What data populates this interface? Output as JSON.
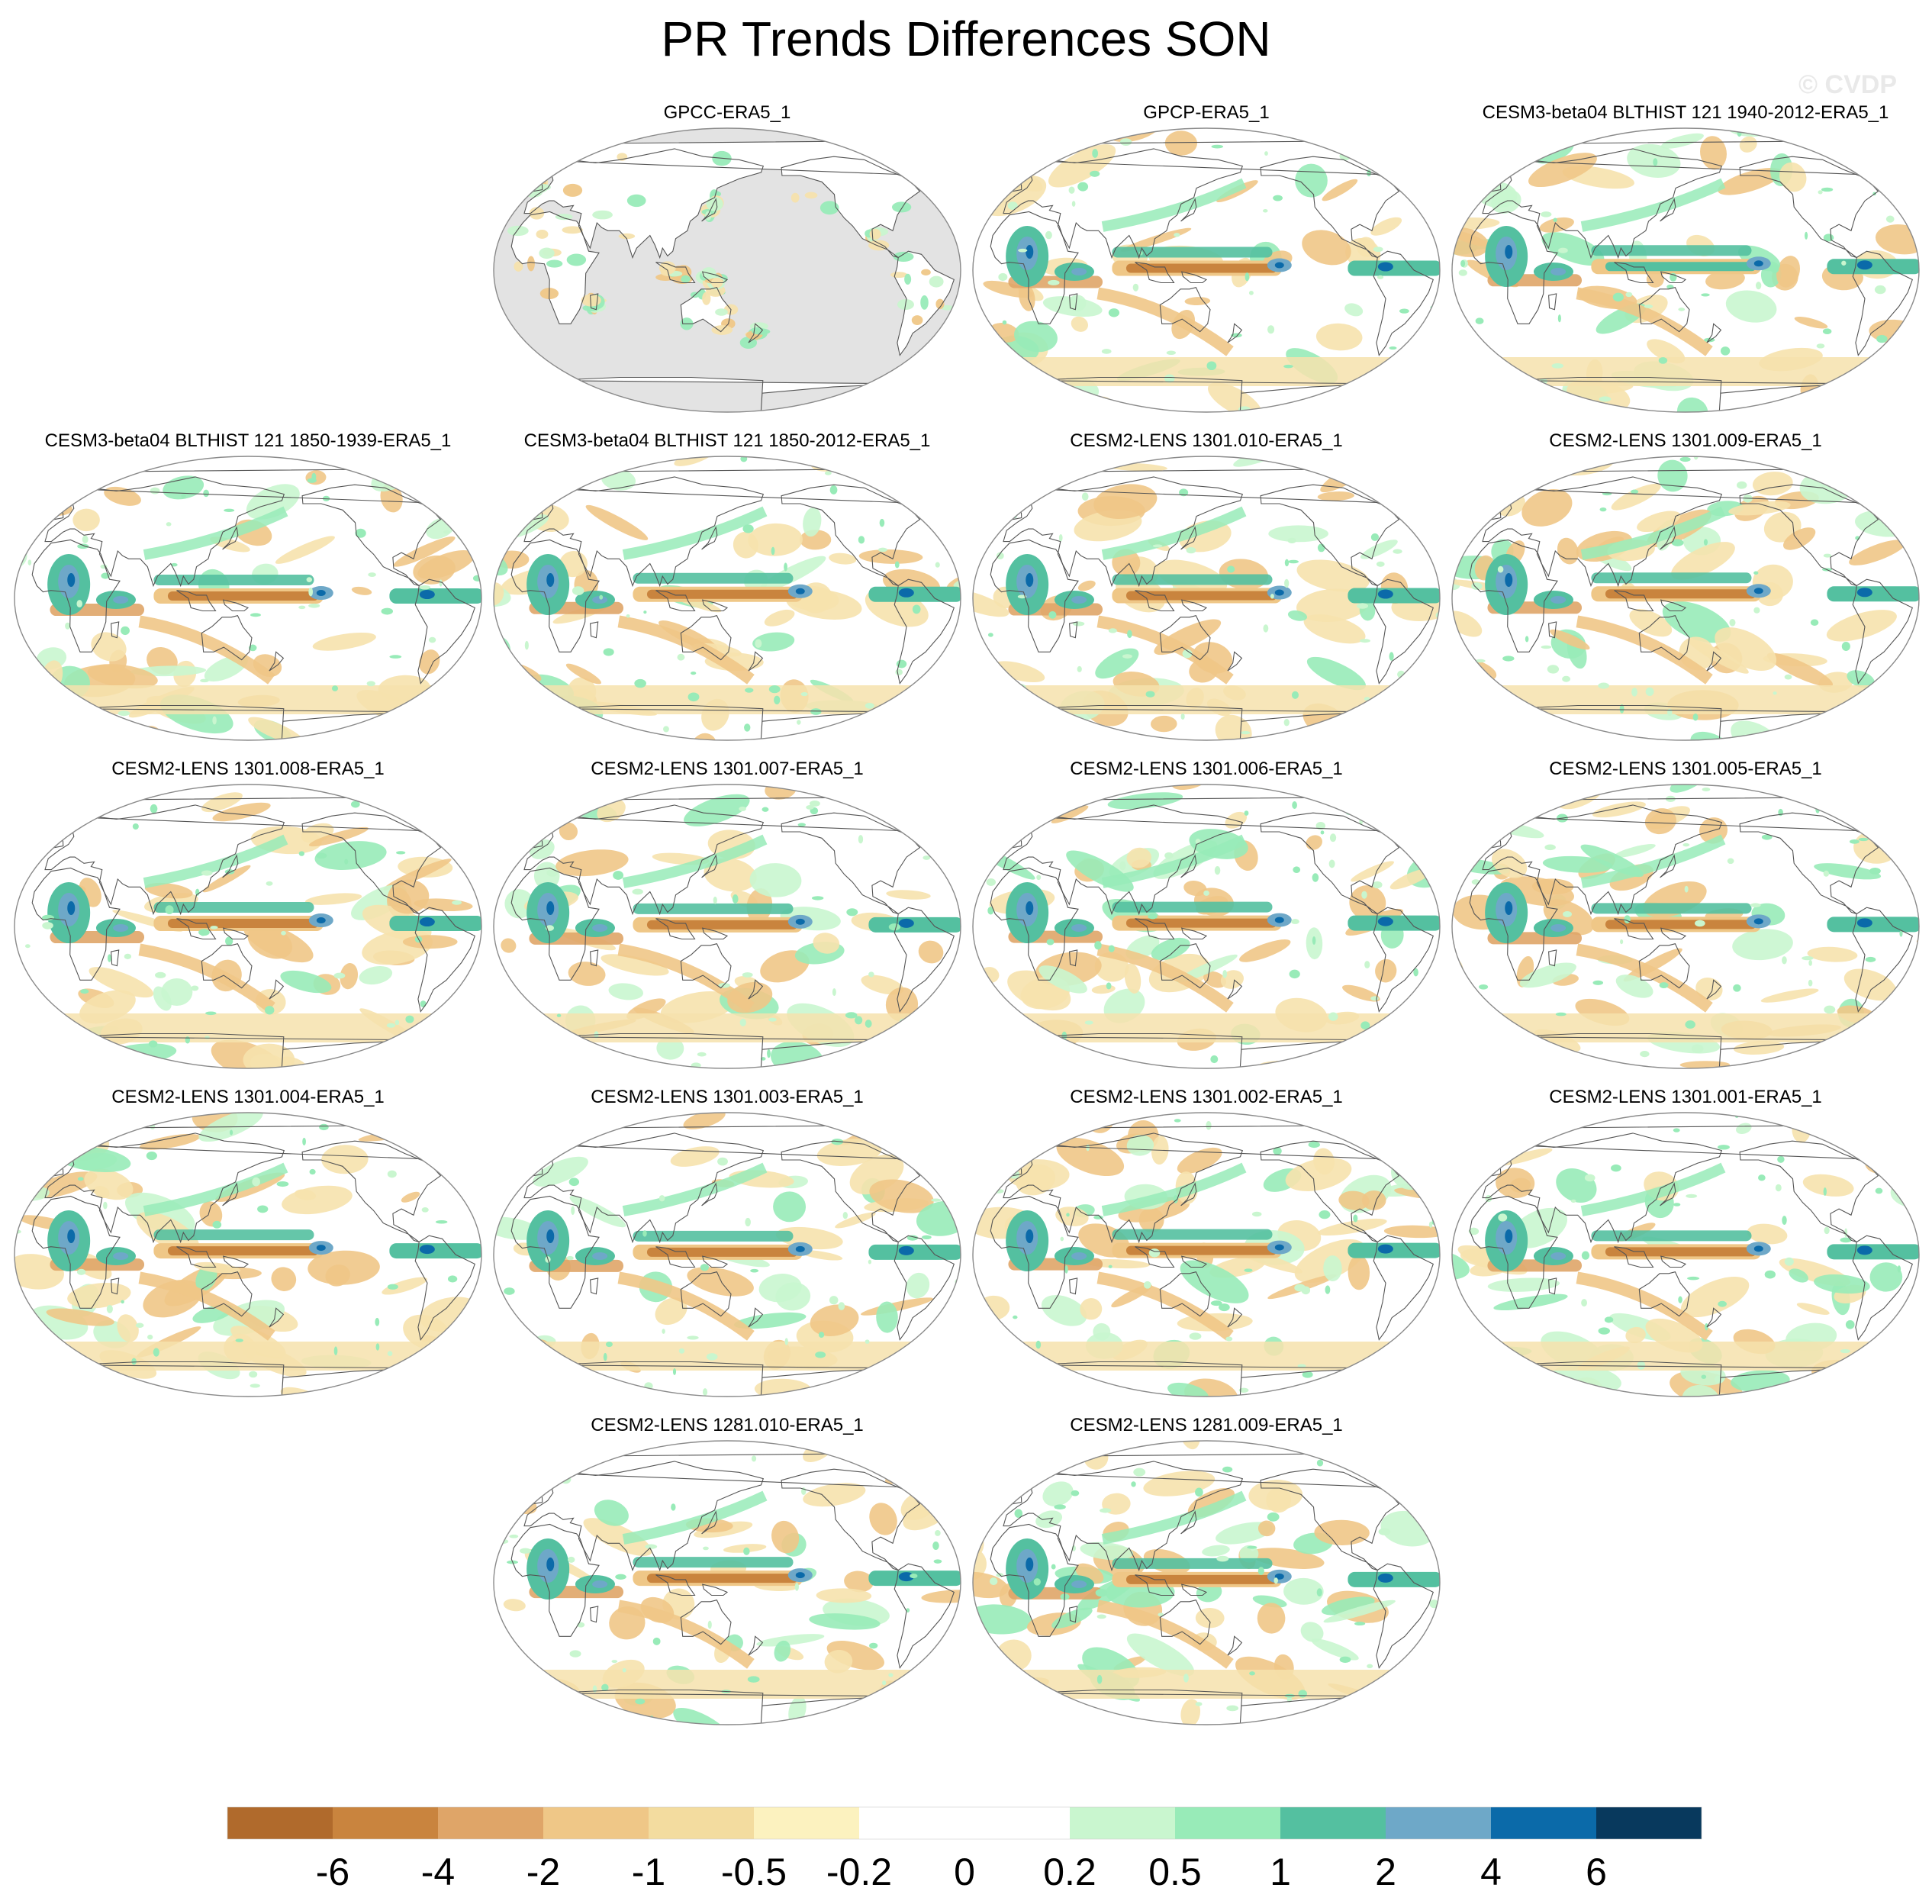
{
  "title": "PR Trends Differences SON",
  "watermark": "© CVDP",
  "chart_data": {
    "type": "map-panels",
    "title": "PR Trends Differences SON",
    "season": "SON",
    "projection": "Robinson (global, Pacific-centered)",
    "panels": [
      {
        "title": "GPCC-ERA5_1",
        "coverage": "land-only",
        "tropical_band_sign": "none"
      },
      {
        "title": "GPCP-ERA5_1",
        "coverage": "global",
        "tropical_band_sign": "mixed"
      },
      {
        "title": "CESM3-beta04 BLTHIST 121 1940-2012-ERA5_1",
        "coverage": "global",
        "tropical_band_sign": "positive"
      },
      {
        "title": "CESM3-beta04 BLTHIST 121 1850-1939-ERA5_1",
        "coverage": "global",
        "tropical_band_sign": "negative"
      },
      {
        "title": "CESM3-beta04 BLTHIST 121 1850-2012-ERA5_1",
        "coverage": "global",
        "tropical_band_sign": "negative"
      },
      {
        "title": "CESM2-LENS 1301.010-ERA5_1",
        "coverage": "global",
        "tropical_band_sign": "negative"
      },
      {
        "title": "CESM2-LENS 1301.009-ERA5_1",
        "coverage": "global",
        "tropical_band_sign": "negative"
      },
      {
        "title": "CESM2-LENS 1301.008-ERA5_1",
        "coverage": "global",
        "tropical_band_sign": "negative"
      },
      {
        "title": "CESM2-LENS 1301.007-ERA5_1",
        "coverage": "global",
        "tropical_band_sign": "negative"
      },
      {
        "title": "CESM2-LENS 1301.006-ERA5_1",
        "coverage": "global",
        "tropical_band_sign": "negative"
      },
      {
        "title": "CESM2-LENS 1301.005-ERA5_1",
        "coverage": "global",
        "tropical_band_sign": "negative"
      },
      {
        "title": "CESM2-LENS 1301.004-ERA5_1",
        "coverage": "global",
        "tropical_band_sign": "negative"
      },
      {
        "title": "CESM2-LENS 1301.003-ERA5_1",
        "coverage": "global",
        "tropical_band_sign": "negative"
      },
      {
        "title": "CESM2-LENS 1301.002-ERA5_1",
        "coverage": "global",
        "tropical_band_sign": "negative"
      },
      {
        "title": "CESM2-LENS 1301.001-ERA5_1",
        "coverage": "global",
        "tropical_band_sign": "negative"
      },
      {
        "title": "CESM2-LENS 1281.010-ERA5_1",
        "coverage": "global",
        "tropical_band_sign": "negative"
      },
      {
        "title": "CESM2-LENS 1281.009-ERA5_1",
        "coverage": "global",
        "tropical_band_sign": "negative"
      }
    ],
    "colorbar": {
      "tick_labels": [
        "-6",
        "-4",
        "-2",
        "-1",
        "-0.5",
        "-0.2",
        "0",
        "0.2",
        "0.5",
        "1",
        "2",
        "4",
        "6"
      ],
      "colors": [
        "#b06a2c",
        "#c9843e",
        "#dfa568",
        "#efc787",
        "#f3dc9f",
        "#fcf2bf",
        "#ffffff",
        "#ffffff",
        "#c9f6cf",
        "#98ebb8",
        "#54c0a0",
        "#6ea8c8",
        "#0b6aa9",
        "#08395d"
      ]
    }
  },
  "palette": {
    "land_gray": "#e3e3e3",
    "coast": "#555555",
    "outline": "#8a8a8a",
    "dry_strong": "#c9843e",
    "dry_mid": "#dfa568",
    "dry_light": "#efc787",
    "dry_pale": "#f6e2ad",
    "wet_pale": "#c9f6cf",
    "wet_light": "#98ebb8",
    "wet_mid": "#54c0a0",
    "wet_blue": "#6ea8c8",
    "wet_dark": "#0b6aa9"
  }
}
